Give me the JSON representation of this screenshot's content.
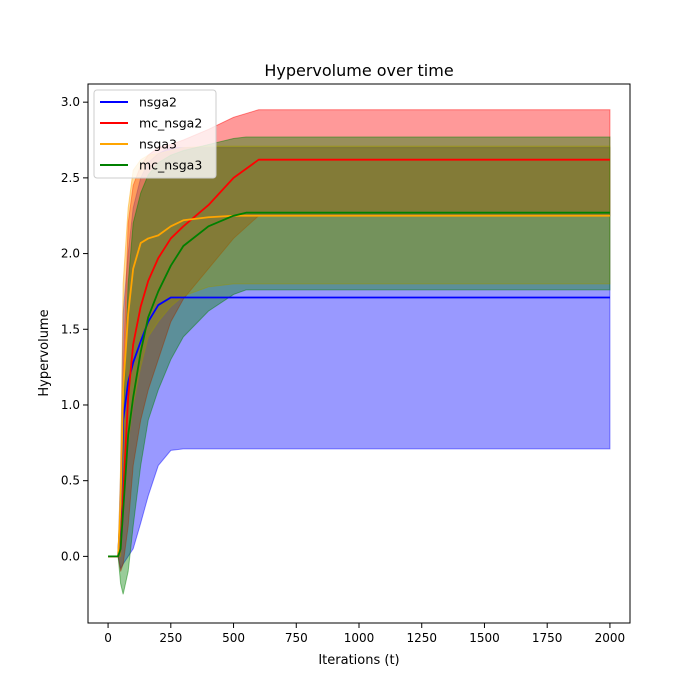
{
  "chart_data": {
    "type": "line",
    "title": "Hypervolume over time",
    "xlabel": "Iterations (t)",
    "ylabel": "Hypervolume",
    "xlim": [
      -80,
      2080
    ],
    "ylim": [
      -0.44,
      3.12
    ],
    "xticks": [
      0,
      250,
      500,
      750,
      1000,
      1250,
      1500,
      1750,
      2000
    ],
    "yticks": [
      0.0,
      0.5,
      1.0,
      1.5,
      2.0,
      2.5,
      3.0
    ],
    "xtick_labels": [
      "0",
      "250",
      "500",
      "750",
      "1000",
      "1250",
      "1500",
      "1750",
      "2000"
    ],
    "ytick_labels": [
      "0.0",
      "0.5",
      "1.0",
      "1.5",
      "2.0",
      "2.5",
      "3.0"
    ],
    "grid": false,
    "legend_position": "top-left",
    "series": [
      {
        "name": "nsga2",
        "color": "#0000ff",
        "band_fill": "#0000ff",
        "x": [
          0,
          40,
          50,
          60,
          80,
          100,
          130,
          160,
          200,
          250,
          300,
          2000
        ],
        "mean": [
          0,
          0,
          0.3,
          0.9,
          1.15,
          1.28,
          1.42,
          1.55,
          1.66,
          1.71,
          1.71,
          1.71
        ],
        "upper": [
          0,
          0,
          0.55,
          1.6,
          2.0,
          2.3,
          2.5,
          2.6,
          2.66,
          2.7,
          2.7,
          2.7
        ],
        "lower": [
          0,
          0,
          -0.08,
          -0.05,
          0.0,
          0.05,
          0.22,
          0.4,
          0.6,
          0.7,
          0.71,
          0.71
        ]
      },
      {
        "name": "mc_nsga2",
        "color": "#ff0000",
        "band_fill": "#ff0000",
        "x": [
          0,
          40,
          50,
          60,
          80,
          100,
          130,
          160,
          200,
          250,
          300,
          400,
          500,
          600,
          2000
        ],
        "mean": [
          0,
          0,
          0.05,
          0.4,
          1.05,
          1.4,
          1.65,
          1.82,
          1.97,
          2.1,
          2.18,
          2.32,
          2.5,
          2.62,
          2.62
        ],
        "upper": [
          0,
          0,
          0.3,
          1.2,
          2.2,
          2.45,
          2.58,
          2.65,
          2.7,
          2.72,
          2.75,
          2.82,
          2.9,
          2.95,
          2.95
        ],
        "lower": [
          0,
          0,
          -0.1,
          -0.05,
          0.2,
          0.6,
          0.9,
          1.1,
          1.3,
          1.55,
          1.7,
          1.9,
          2.1,
          2.25,
          2.25
        ]
      },
      {
        "name": "nsga3",
        "color": "#ffa500",
        "band_fill": "#ffa500",
        "x": [
          0,
          40,
          50,
          60,
          80,
          100,
          130,
          160,
          200,
          250,
          300,
          400,
          500,
          2000
        ],
        "mean": [
          0,
          0,
          0.35,
          1.1,
          1.6,
          1.9,
          2.07,
          2.1,
          2.12,
          2.18,
          2.22,
          2.24,
          2.25,
          2.25
        ],
        "upper": [
          0,
          0,
          0.6,
          1.8,
          2.3,
          2.55,
          2.62,
          2.65,
          2.66,
          2.68,
          2.7,
          2.71,
          2.71,
          2.71
        ],
        "lower": [
          0,
          0,
          0.0,
          0.35,
          0.75,
          1.0,
          1.25,
          1.45,
          1.55,
          1.65,
          1.72,
          1.78,
          1.8,
          1.8
        ]
      },
      {
        "name": "mc_nsga3",
        "color": "#008000",
        "band_fill": "#008000",
        "x": [
          0,
          40,
          50,
          60,
          80,
          100,
          130,
          160,
          200,
          250,
          300,
          400,
          500,
          550,
          2000
        ],
        "mean": [
          0,
          0,
          0.05,
          0.3,
          0.8,
          1.05,
          1.35,
          1.58,
          1.75,
          1.92,
          2.05,
          2.18,
          2.25,
          2.27,
          2.27
        ],
        "upper": [
          0,
          0,
          0.2,
          0.9,
          1.8,
          2.2,
          2.4,
          2.52,
          2.6,
          2.65,
          2.68,
          2.72,
          2.76,
          2.77,
          2.77
        ],
        "lower": [
          0,
          0,
          -0.18,
          -0.25,
          -0.1,
          0.2,
          0.6,
          0.9,
          1.1,
          1.3,
          1.45,
          1.62,
          1.73,
          1.76,
          1.76
        ]
      }
    ]
  }
}
